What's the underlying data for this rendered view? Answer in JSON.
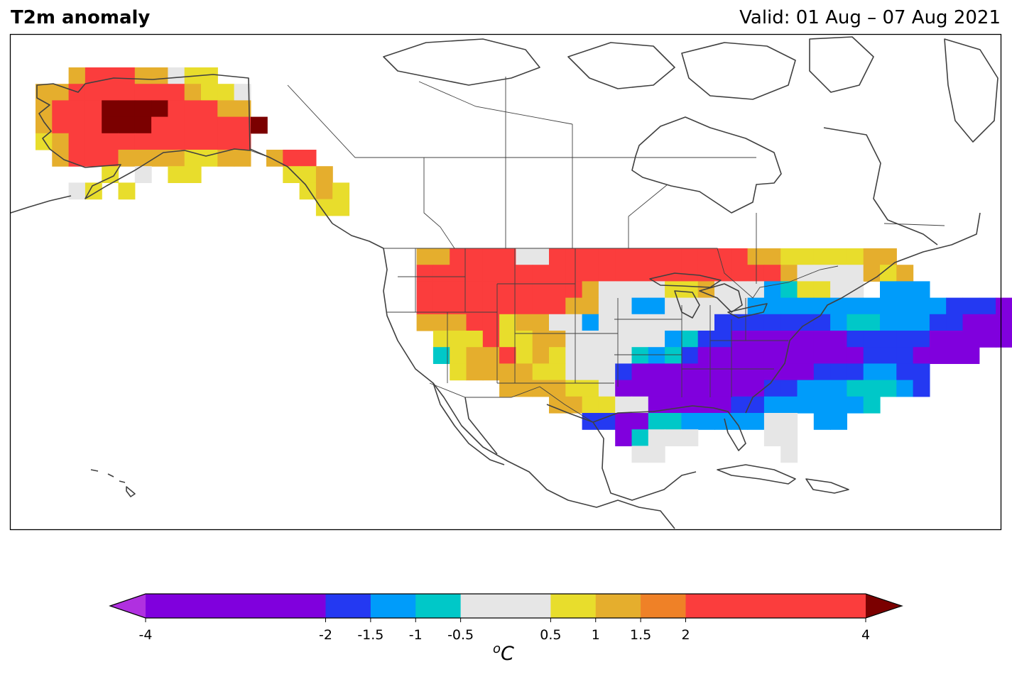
{
  "header": {
    "title": "T2m anomaly",
    "valid": "Valid: 01 Aug – 07 Aug 2021"
  },
  "legend": {
    "unit_prefix": "o",
    "unit_main": "C",
    "boundaries": [
      -4,
      -2,
      -1.5,
      -1,
      -0.5,
      0.5,
      1,
      1.5,
      2,
      4
    ],
    "tick_labels": [
      "-4",
      "-2",
      "-1.5",
      "-1",
      "-0.5",
      "0.5",
      "1",
      "1.5",
      "2",
      "4"
    ],
    "bin_colors": [
      "#8000dd",
      "#2439f2",
      "#009cfa",
      "#00c8c8",
      "#e6e6e6",
      "#e8dd2c",
      "#e5ae2d",
      "#ef8127",
      "#fb3d3d"
    ],
    "under_color": "#b030e0",
    "over_color": "#7b0000"
  },
  "map": {
    "region": "North America (Alaska, Canada, contiguous United States, Mexico, Caribbean)",
    "regions": [
      {
        "name": "Alaska",
        "anomaly_range_c": [
          1,
          4
        ]
      },
      {
        "name": "Pacific Northwest and Northern Plains",
        "anomaly_range_c": [
          1.5,
          4
        ]
      },
      {
        "name": "Southwest",
        "anomaly_range_c": [
          0.5,
          2
        ]
      },
      {
        "name": "Southern Plains and Ohio Valley",
        "anomaly_range_c": [
          -4,
          -1.5
        ]
      },
      {
        "name": "Northeast",
        "anomaly_range_c": [
          -2,
          -0.5
        ]
      },
      {
        "name": "Florida and Gulf coast",
        "anomaly_range_c": [
          -0.5,
          0.5
        ]
      }
    ]
  }
}
